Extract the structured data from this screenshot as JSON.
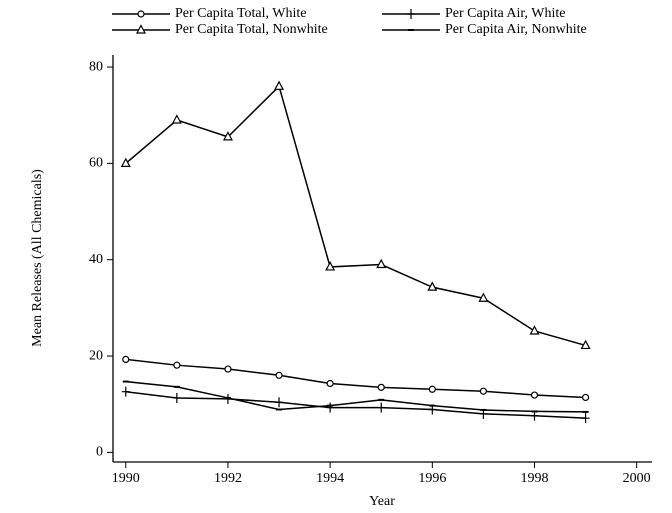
{
  "chart_data": {
    "type": "line",
    "x_label": "Year",
    "y_label": "Mean Releases (All Chemicals)",
    "x": [
      1990,
      1991,
      1992,
      1993,
      1994,
      1995,
      1996,
      1997,
      1998,
      1999
    ],
    "series": [
      {
        "name": "Per Capita Total, White",
        "color": "#000000",
        "marker": "circle",
        "values": [
          19.3,
          18.1,
          17.3,
          16.0,
          14.3,
          13.5,
          13.1,
          12.7,
          11.9,
          11.4
        ]
      },
      {
        "name": "Per Capita Air, White",
        "color": "#000000",
        "marker": "plus",
        "values": [
          12.6,
          11.3,
          11.1,
          10.4,
          9.3,
          9.3,
          8.9,
          8.0,
          7.6,
          7.1
        ]
      },
      {
        "name": "Per Capita Total, Nonwhite",
        "color": "#000000",
        "marker": "triangle",
        "values": [
          60,
          69,
          65.5,
          76,
          38.5,
          39,
          34.3,
          32,
          25.2,
          22.2
        ]
      },
      {
        "name": "Per Capita Air, Nonwhite",
        "color": "#000000",
        "marker": "dash",
        "values": [
          14.7,
          13.6,
          11.3,
          8.9,
          9.7,
          10.9,
          9.7,
          8.8,
          8.5,
          8.4
        ]
      }
    ],
    "xlim": [
      1989.75,
      2000.3
    ],
    "xticks": [
      1990,
      1992,
      1994,
      1996,
      1998,
      2000
    ],
    "ylim": [
      -2,
      82.5
    ],
    "yticks": [
      0,
      20,
      40,
      60,
      80
    ],
    "grid": false,
    "legend": "top"
  }
}
